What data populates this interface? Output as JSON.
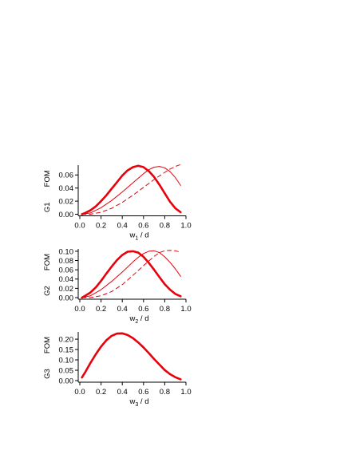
{
  "chart_data": [
    {
      "type": "line",
      "panel_label": "G1",
      "ylabel": "FOM",
      "xlabel_main": "w",
      "xlabel_sub": "1",
      "xlabel_tail": " / d",
      "xlim": [
        0,
        1.0
      ],
      "ylim": [
        0,
        0.075
      ],
      "xticks": [
        0.0,
        0.2,
        0.4,
        0.6,
        0.8,
        1.0
      ],
      "xtick_labels": [
        "0.0",
        "0.2",
        "0.4",
        "0.6",
        "0.8",
        "1.0"
      ],
      "yticks": [
        0.0,
        0.02,
        0.04,
        0.06
      ],
      "ytick_labels": [
        "0.00",
        "0.02",
        "0.04",
        "0.06"
      ],
      "grid": false,
      "series": [
        {
          "style": "thick",
          "x": [
            0.02,
            0.05,
            0.1,
            0.15,
            0.2,
            0.25,
            0.3,
            0.35,
            0.4,
            0.45,
            0.5,
            0.55,
            0.6,
            0.65,
            0.7,
            0.75,
            0.8,
            0.85,
            0.9,
            0.95
          ],
          "y": [
            0.0,
            0.002,
            0.006,
            0.012,
            0.02,
            0.029,
            0.039,
            0.049,
            0.059,
            0.067,
            0.072,
            0.074,
            0.072,
            0.066,
            0.057,
            0.045,
            0.032,
            0.019,
            0.009,
            0.003
          ]
        },
        {
          "style": "thin",
          "x": [
            0.02,
            0.1,
            0.2,
            0.3,
            0.4,
            0.5,
            0.55,
            0.6,
            0.65,
            0.7,
            0.75,
            0.8,
            0.85,
            0.9,
            0.95
          ],
          "y": [
            0.0,
            0.002,
            0.01,
            0.021,
            0.034,
            0.048,
            0.055,
            0.062,
            0.068,
            0.072,
            0.073,
            0.071,
            0.065,
            0.056,
            0.044
          ]
        },
        {
          "style": "dashed",
          "x": [
            0.02,
            0.1,
            0.2,
            0.3,
            0.4,
            0.5,
            0.6,
            0.7,
            0.8,
            0.85,
            0.9,
            0.95
          ],
          "y": [
            0.0,
            0.0,
            0.003,
            0.009,
            0.018,
            0.029,
            0.041,
            0.053,
            0.064,
            0.069,
            0.073,
            0.076
          ]
        }
      ]
    },
    {
      "type": "line",
      "panel_label": "G2",
      "ylabel": "FOM",
      "xlabel_main": "w",
      "xlabel_sub": "2",
      "xlabel_tail": " / d",
      "xlim": [
        0,
        1.0
      ],
      "ylim": [
        0,
        0.105
      ],
      "xticks": [
        0.0,
        0.2,
        0.4,
        0.6,
        0.8,
        1.0
      ],
      "xtick_labels": [
        "0.0",
        "0.2",
        "0.4",
        "0.6",
        "0.8",
        "1.0"
      ],
      "yticks": [
        0.0,
        0.02,
        0.04,
        0.06,
        0.08,
        0.1
      ],
      "ytick_labels": [
        "0.00",
        "0.02",
        "0.04",
        "0.06",
        "0.08",
        "0.10"
      ],
      "grid": false,
      "series": [
        {
          "style": "thick",
          "x": [
            0.02,
            0.05,
            0.1,
            0.15,
            0.2,
            0.25,
            0.3,
            0.35,
            0.4,
            0.45,
            0.5,
            0.55,
            0.6,
            0.65,
            0.7,
            0.75,
            0.8,
            0.85,
            0.9,
            0.95
          ],
          "y": [
            0.0,
            0.004,
            0.011,
            0.022,
            0.036,
            0.052,
            0.067,
            0.081,
            0.092,
            0.099,
            0.1,
            0.097,
            0.088,
            0.075,
            0.06,
            0.044,
            0.029,
            0.017,
            0.008,
            0.003
          ]
        },
        {
          "style": "thin",
          "x": [
            0.02,
            0.1,
            0.2,
            0.3,
            0.4,
            0.5,
            0.55,
            0.6,
            0.65,
            0.7,
            0.75,
            0.8,
            0.85,
            0.9,
            0.95
          ],
          "y": [
            0.0,
            0.004,
            0.017,
            0.035,
            0.055,
            0.077,
            0.087,
            0.095,
            0.1,
            0.101,
            0.097,
            0.088,
            0.076,
            0.062,
            0.046
          ]
        },
        {
          "style": "dashed",
          "x": [
            0.02,
            0.1,
            0.2,
            0.3,
            0.4,
            0.5,
            0.6,
            0.7,
            0.75,
            0.8,
            0.85,
            0.9,
            0.95
          ],
          "y": [
            0.0,
            0.0,
            0.004,
            0.013,
            0.028,
            0.048,
            0.069,
            0.089,
            0.097,
            0.101,
            0.102,
            0.101,
            0.098
          ]
        }
      ]
    },
    {
      "type": "line",
      "panel_label": "G3",
      "ylabel": "FOM",
      "xlabel_main": "w",
      "xlabel_sub": "3",
      "xlabel_tail": " / d",
      "xlim": [
        0,
        1.0
      ],
      "ylim": [
        0,
        0.235
      ],
      "xticks": [
        0.0,
        0.2,
        0.4,
        0.6,
        0.8,
        1.0
      ],
      "xtick_labels": [
        "0.0",
        "0.2",
        "0.4",
        "0.6",
        "0.8",
        "1.0"
      ],
      "yticks": [
        0.0,
        0.05,
        0.1,
        0.15,
        0.2
      ],
      "ytick_labels": [
        "0.00",
        "0.05",
        "0.10",
        "0.15",
        "0.20"
      ],
      "grid": false,
      "series": [
        {
          "style": "thick",
          "x": [
            0.02,
            0.05,
            0.1,
            0.15,
            0.2,
            0.25,
            0.3,
            0.35,
            0.4,
            0.45,
            0.5,
            0.55,
            0.6,
            0.65,
            0.7,
            0.75,
            0.8,
            0.85,
            0.9,
            0.95
          ],
          "y": [
            0.015,
            0.04,
            0.085,
            0.127,
            0.164,
            0.195,
            0.216,
            0.227,
            0.228,
            0.22,
            0.205,
            0.184,
            0.16,
            0.133,
            0.104,
            0.077,
            0.051,
            0.031,
            0.016,
            0.006
          ]
        }
      ]
    }
  ],
  "colors": {
    "line": "#e8000b",
    "axis": "#000000"
  }
}
